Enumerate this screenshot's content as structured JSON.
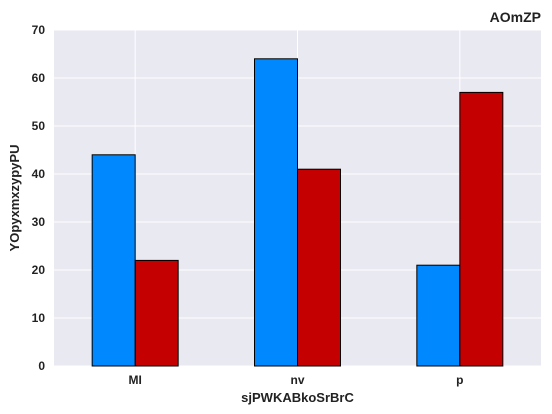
{
  "chart_data": {
    "type": "bar",
    "title": "AOmZP",
    "xlabel": "sjPWKABkoSrBrC",
    "ylabel": "YOpyxmxzypyPU",
    "categories": [
      "MI",
      "nv",
      "p"
    ],
    "series": [
      {
        "values": [
          44,
          64,
          21
        ]
      },
      {
        "values": [
          22,
          41,
          57
        ]
      }
    ],
    "ylim": [
      0,
      70
    ],
    "yticks": [
      0,
      10,
      20,
      30,
      40,
      50,
      60,
      70
    ],
    "grid": true,
    "colors": {
      "series": [
        "#0088ff",
        "#c40000"
      ],
      "plot_background": "#e8e9f1",
      "grid": "#ffffff",
      "bar_edge": "#000000"
    }
  }
}
